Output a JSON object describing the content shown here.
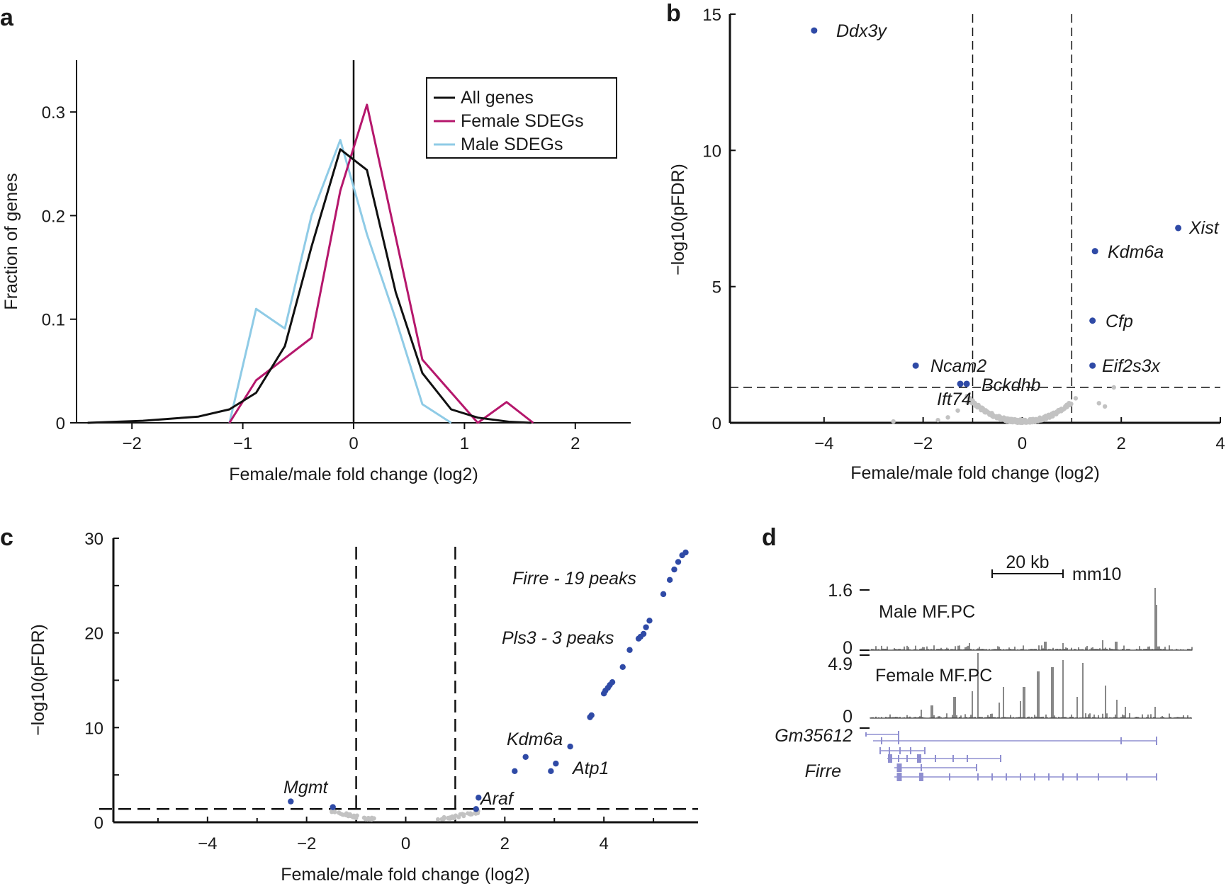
{
  "colors": {
    "all_genes": "#111111",
    "female": "#b5176c",
    "male": "#8fcbe6",
    "sig": "#2f4aa6",
    "nonsig": "#c2c2c2",
    "track": "#8f8fd0"
  },
  "panel_labels": [
    "a",
    "b",
    "c",
    "d"
  ],
  "chart_data": [
    {
      "id": "a",
      "type": "line",
      "xlabel": "Female/male fold change (log2)",
      "ylabel": "Fraction of genes",
      "xlim": [
        -2.5,
        2.5
      ],
      "ylim": [
        0,
        0.35
      ],
      "xticks": [
        -2,
        -1,
        0,
        1,
        2
      ],
      "yticks": [
        0,
        0.1,
        0.2,
        0.3
      ],
      "yticklabels": [
        "0",
        "0.1",
        "0.2",
        "0.3"
      ],
      "vline": 0,
      "legend_position": "top-right",
      "series": [
        {
          "name": "All genes",
          "color_key": "all_genes",
          "x": [
            -2.4,
            -1.9,
            -1.4,
            -1.12,
            -0.88,
            -0.62,
            -0.38,
            -0.12,
            0.12,
            0.38,
            0.62,
            0.88,
            1.12,
            1.4,
            1.6
          ],
          "y": [
            0.0,
            0.002,
            0.006,
            0.013,
            0.029,
            0.074,
            0.17,
            0.264,
            0.244,
            0.126,
            0.048,
            0.013,
            0.005,
            0.001,
            0.0
          ]
        },
        {
          "name": "Female SDEGs",
          "color_key": "female",
          "x": [
            -1.12,
            -0.88,
            -0.38,
            -0.12,
            0.12,
            0.62,
            1.12,
            1.38,
            1.62
          ],
          "y": [
            0.0,
            0.041,
            0.082,
            0.224,
            0.307,
            0.061,
            0.0,
            0.02,
            0.0
          ]
        },
        {
          "name": "Male SDEGs",
          "color_key": "male",
          "x": [
            -1.12,
            -0.88,
            -0.62,
            -0.38,
            -0.12,
            0.12,
            0.38,
            0.62,
            0.88
          ],
          "y": [
            0.0,
            0.11,
            0.091,
            0.2,
            0.273,
            0.182,
            0.1,
            0.018,
            0.0
          ]
        }
      ]
    },
    {
      "id": "b",
      "type": "scatter",
      "xlabel": "Female/male fold change (log2)",
      "ylabel": "−log10(pFDR)",
      "xlim": [
        -5.9,
        4
      ],
      "ylim": [
        0,
        15
      ],
      "xticks": [
        -4,
        -2,
        0,
        2,
        4
      ],
      "xticklabels": [
        "−4",
        "−2",
        "0",
        "2",
        "4"
      ],
      "yticks": [
        0,
        5,
        10,
        15
      ],
      "thresholds": {
        "x": [
          -1,
          1
        ],
        "y": 1.3
      },
      "significant": [
        {
          "gene": "Ddx3y",
          "x": -4.2,
          "y": 14.4
        },
        {
          "gene": "Xist",
          "x": 3.15,
          "y": 7.15
        },
        {
          "gene": "Kdm6a",
          "x": 1.47,
          "y": 6.3
        },
        {
          "gene": "Cfp",
          "x": 1.42,
          "y": 3.75
        },
        {
          "gene": "Eif2s3x",
          "x": 1.42,
          "y": 2.1
        },
        {
          "gene": "Ncam2",
          "x": -2.15,
          "y": 2.1
        },
        {
          "gene": "Bckdhb",
          "x": -1.12,
          "y": 1.43
        },
        {
          "gene": "Ift74",
          "x": -1.25,
          "y": 1.43
        }
      ]
    },
    {
      "id": "c",
      "type": "scatter",
      "xlabel": "Female/male fold change (log2)",
      "ylabel": "−log10(pFDR)",
      "xlim": [
        -5.9,
        5.9
      ],
      "ylim": [
        0,
        30
      ],
      "xticks": [
        -4,
        -2,
        0,
        2,
        4
      ],
      "xticklabels": [
        "−4",
        "−2",
        "0",
        "2",
        "4"
      ],
      "yticks": [
        0,
        10,
        20,
        30
      ],
      "thresholds": {
        "x": [
          -1,
          1
        ],
        "y": 1.4
      },
      "labels": [
        "Firre - 19 peaks",
        "Pls3 - 3 peaks",
        "Kdm6a",
        "Atp1",
        "Araf",
        "Mgmt"
      ],
      "significant_points": {
        "x": [
          5.65,
          5.58,
          5.5,
          5.42,
          5.33,
          5.2,
          4.92,
          4.85,
          4.8,
          4.74,
          4.7,
          4.52,
          4.38,
          4.17,
          4.12,
          4.08,
          4.03,
          4.0,
          3.75,
          3.72,
          3.32,
          3.03,
          2.93,
          2.42,
          2.2,
          1.47,
          1.42,
          -2.32,
          -1.47
        ],
        "y": [
          28.5,
          28.2,
          27.5,
          26.7,
          25.6,
          24.1,
          21.3,
          20.6,
          19.9,
          19.6,
          19.4,
          18.2,
          16.4,
          14.8,
          14.5,
          14.2,
          13.9,
          13.6,
          11.3,
          11.1,
          8.0,
          6.2,
          5.4,
          6.9,
          5.4,
          2.6,
          1.4,
          2.2,
          1.6
        ]
      }
    }
  ],
  "tracks": {
    "scale_label": "20 kb",
    "assembly": "mm10",
    "male_label": "Male MF.PC",
    "male_max": "1.6",
    "male_min": "0",
    "female_label": "Female MF.PC",
    "female_max": "4.9",
    "female_min": "0",
    "gene1": "Gm35612",
    "gene2": "Firre"
  }
}
